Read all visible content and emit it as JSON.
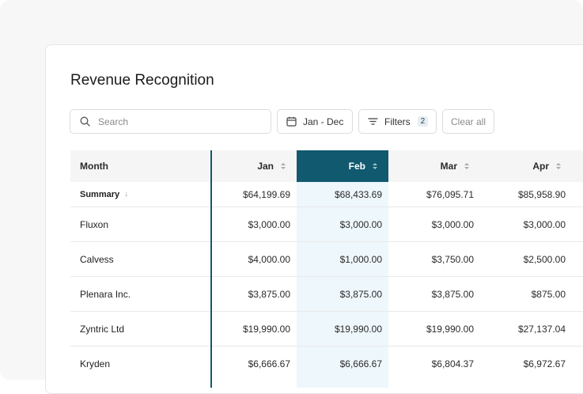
{
  "page": {
    "title": "Revenue Recognition"
  },
  "toolbar": {
    "search_placeholder": "Search",
    "date_range_label": "Jan - Dec",
    "filters_label": "Filters",
    "filters_count": "2",
    "clear_label": "Clear all"
  },
  "table": {
    "columns": [
      "Month",
      "Jan",
      "Feb",
      "Mar",
      "Apr"
    ],
    "selected_column": "Feb",
    "summary": {
      "label": "Summary",
      "values": [
        "$64,199.69",
        "$68,433.69",
        "$76,095.71",
        "$85,958.90"
      ]
    },
    "rows": [
      {
        "name": "Fluxon",
        "values": [
          "$3,000.00",
          "$3,000.00",
          "$3,000.00",
          "$3,000.00"
        ]
      },
      {
        "name": "Calvess",
        "values": [
          "$4,000.00",
          "$1,000.00",
          "$3,750.00",
          "$2,500.00"
        ]
      },
      {
        "name": "Plenara Inc.",
        "values": [
          "$3,875.00",
          "$3,875.00",
          "$3,875.00",
          "$875.00"
        ]
      },
      {
        "name": "Zyntric Ltd",
        "values": [
          "$19,990.00",
          "$19,990.00",
          "$19,990.00",
          "$27,137.04"
        ]
      },
      {
        "name": "Kryden",
        "values": [
          "$6,666.67",
          "$6,666.67",
          "$6,804.37",
          "$6,972.67"
        ]
      }
    ]
  },
  "icons": {
    "search": "search-icon",
    "calendar": "calendar-icon",
    "filter": "filter-icon",
    "sort": "sort-icon",
    "sort_desc": "arrow-down-icon"
  },
  "colors": {
    "accent": "#11596e",
    "accent_light": "#eef7fb"
  }
}
